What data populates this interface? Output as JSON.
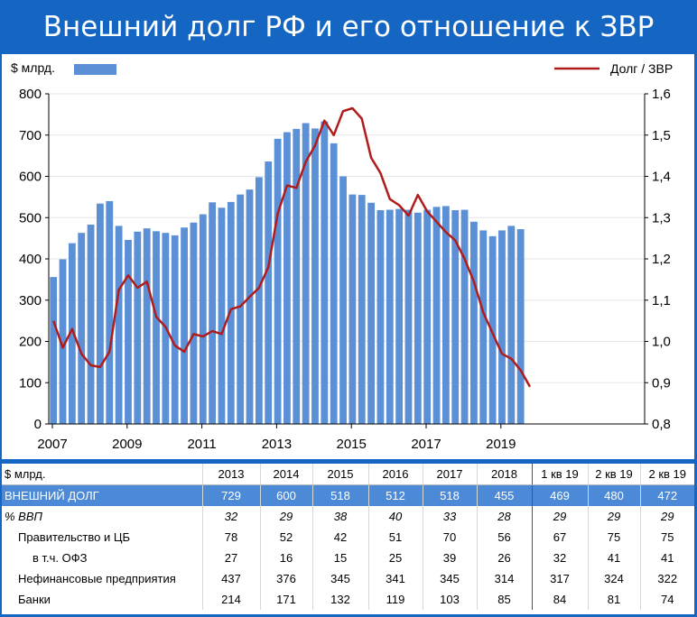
{
  "title": "Внешний долг РФ и его отношение к ЗВР",
  "chart_data": {
    "type": "bar+line",
    "left_unit": "$ млрд.",
    "right_series_name": "Долг / ЗВР",
    "left_ylim": [
      0,
      800
    ],
    "left_yticks": [
      "0",
      "100",
      "200",
      "300",
      "400",
      "500",
      "600",
      "700",
      "800"
    ],
    "right_ylim": [
      0.8,
      1.6
    ],
    "right_yticks": [
      "0,8",
      "0,9",
      "1,0",
      "1,1",
      "1,2",
      "1,3",
      "1,4",
      "1,5",
      "1,6"
    ],
    "xticks": [
      "2007",
      "2009",
      "2011",
      "2013",
      "2015",
      "2017",
      "2019"
    ],
    "x_start": 2007.0,
    "bar_color": "#5b8fd6",
    "line_color": "#b01c1c",
    "bars": [
      {
        "x": 2007.0,
        "y": 356
      },
      {
        "x": 2007.25,
        "y": 399
      },
      {
        "x": 2007.5,
        "y": 438
      },
      {
        "x": 2007.75,
        "y": 463
      },
      {
        "x": 2008.0,
        "y": 483
      },
      {
        "x": 2008.25,
        "y": 534
      },
      {
        "x": 2008.5,
        "y": 540
      },
      {
        "x": 2008.75,
        "y": 480
      },
      {
        "x": 2009.0,
        "y": 446
      },
      {
        "x": 2009.25,
        "y": 466
      },
      {
        "x": 2009.5,
        "y": 474
      },
      {
        "x": 2009.75,
        "y": 467
      },
      {
        "x": 2010.0,
        "y": 463
      },
      {
        "x": 2010.25,
        "y": 457
      },
      {
        "x": 2010.5,
        "y": 476
      },
      {
        "x": 2010.75,
        "y": 488
      },
      {
        "x": 2011.0,
        "y": 508
      },
      {
        "x": 2011.25,
        "y": 537
      },
      {
        "x": 2011.5,
        "y": 524
      },
      {
        "x": 2011.75,
        "y": 538
      },
      {
        "x": 2012.0,
        "y": 556
      },
      {
        "x": 2012.25,
        "y": 568
      },
      {
        "x": 2012.5,
        "y": 598
      },
      {
        "x": 2012.75,
        "y": 636
      },
      {
        "x": 2013.0,
        "y": 691
      },
      {
        "x": 2013.25,
        "y": 707
      },
      {
        "x": 2013.5,
        "y": 715
      },
      {
        "x": 2013.75,
        "y": 729
      },
      {
        "x": 2014.0,
        "y": 716
      },
      {
        "x": 2014.25,
        "y": 733
      },
      {
        "x": 2014.5,
        "y": 680
      },
      {
        "x": 2014.75,
        "y": 600
      },
      {
        "x": 2015.0,
        "y": 556
      },
      {
        "x": 2015.25,
        "y": 555
      },
      {
        "x": 2015.5,
        "y": 536
      },
      {
        "x": 2015.75,
        "y": 518
      },
      {
        "x": 2016.0,
        "y": 519
      },
      {
        "x": 2016.25,
        "y": 521
      },
      {
        "x": 2016.5,
        "y": 519
      },
      {
        "x": 2016.75,
        "y": 512
      },
      {
        "x": 2017.0,
        "y": 519
      },
      {
        "x": 2017.25,
        "y": 526
      },
      {
        "x": 2017.5,
        "y": 528
      },
      {
        "x": 2017.75,
        "y": 518
      },
      {
        "x": 2018.0,
        "y": 519
      },
      {
        "x": 2018.25,
        "y": 490
      },
      {
        "x": 2018.5,
        "y": 469
      },
      {
        "x": 2018.75,
        "y": 455
      },
      {
        "x": 2019.0,
        "y": 469
      },
      {
        "x": 2019.25,
        "y": 480
      },
      {
        "x": 2019.5,
        "y": 472
      }
    ],
    "ratio": [
      {
        "x": 2007.0,
        "y": 1.05
      },
      {
        "x": 2007.25,
        "y": 0.985
      },
      {
        "x": 2007.5,
        "y": 1.03
      },
      {
        "x": 2007.75,
        "y": 0.97
      },
      {
        "x": 2008.0,
        "y": 0.942
      },
      {
        "x": 2008.25,
        "y": 0.938
      },
      {
        "x": 2008.5,
        "y": 0.975
      },
      {
        "x": 2008.75,
        "y": 1.125
      },
      {
        "x": 2009.0,
        "y": 1.16
      },
      {
        "x": 2009.25,
        "y": 1.13
      },
      {
        "x": 2009.5,
        "y": 1.145
      },
      {
        "x": 2009.75,
        "y": 1.06
      },
      {
        "x": 2010.0,
        "y": 1.035
      },
      {
        "x": 2010.25,
        "y": 0.99
      },
      {
        "x": 2010.5,
        "y": 0.975
      },
      {
        "x": 2010.75,
        "y": 1.018
      },
      {
        "x": 2011.0,
        "y": 1.012
      },
      {
        "x": 2011.25,
        "y": 1.025
      },
      {
        "x": 2011.5,
        "y": 1.018
      },
      {
        "x": 2011.75,
        "y": 1.078
      },
      {
        "x": 2012.0,
        "y": 1.085
      },
      {
        "x": 2012.25,
        "y": 1.108
      },
      {
        "x": 2012.5,
        "y": 1.13
      },
      {
        "x": 2012.75,
        "y": 1.18
      },
      {
        "x": 2013.0,
        "y": 1.31
      },
      {
        "x": 2013.25,
        "y": 1.378
      },
      {
        "x": 2013.5,
        "y": 1.372
      },
      {
        "x": 2013.75,
        "y": 1.435
      },
      {
        "x": 2014.0,
        "y": 1.475
      },
      {
        "x": 2014.25,
        "y": 1.535
      },
      {
        "x": 2014.5,
        "y": 1.5
      },
      {
        "x": 2014.75,
        "y": 1.558
      },
      {
        "x": 2015.0,
        "y": 1.565
      },
      {
        "x": 2015.25,
        "y": 1.54
      },
      {
        "x": 2015.5,
        "y": 1.445
      },
      {
        "x": 2015.75,
        "y": 1.408
      },
      {
        "x": 2016.0,
        "y": 1.345
      },
      {
        "x": 2016.25,
        "y": 1.33
      },
      {
        "x": 2016.5,
        "y": 1.305
      },
      {
        "x": 2016.75,
        "y": 1.355
      },
      {
        "x": 2017.0,
        "y": 1.315
      },
      {
        "x": 2017.25,
        "y": 1.29
      },
      {
        "x": 2017.5,
        "y": 1.265
      },
      {
        "x": 2017.75,
        "y": 1.245
      },
      {
        "x": 2018.0,
        "y": 1.2
      },
      {
        "x": 2018.25,
        "y": 1.145
      },
      {
        "x": 2018.5,
        "y": 1.07
      },
      {
        "x": 2018.75,
        "y": 1.02
      },
      {
        "x": 2019.0,
        "y": 0.97
      },
      {
        "x": 2019.25,
        "y": 0.958
      },
      {
        "x": 2019.5,
        "y": 0.93
      },
      {
        "x": 2019.75,
        "y": 0.89
      }
    ]
  },
  "table": {
    "header": [
      "$ млрд.",
      "2013",
      "2014",
      "2015",
      "2016",
      "2017",
      "2018",
      "1 кв 19",
      "2 кв 19",
      "2 кв 19"
    ],
    "rows": [
      {
        "label": "ВНЕШНИЙ ДОЛГ",
        "values": [
          "729",
          "600",
          "518",
          "512",
          "518",
          "455",
          "469",
          "480",
          "472"
        ]
      },
      {
        "label": "% ВВП",
        "values": [
          "32",
          "29",
          "38",
          "40",
          "33",
          "28",
          "29",
          "29",
          "29"
        ]
      },
      {
        "label": "Правительство и ЦБ",
        "values": [
          "78",
          "52",
          "42",
          "51",
          "70",
          "56",
          "67",
          "75",
          "75"
        ]
      },
      {
        "label": "в т.ч. ОФЗ",
        "values": [
          "27",
          "16",
          "15",
          "25",
          "39",
          "26",
          "32",
          "41",
          "41"
        ]
      },
      {
        "label": "Нефинансовые предприятия",
        "values": [
          "437",
          "376",
          "345",
          "341",
          "345",
          "314",
          "317",
          "324",
          "322"
        ]
      },
      {
        "label": "Банки",
        "values": [
          "214",
          "171",
          "132",
          "119",
          "103",
          "85",
          "84",
          "81",
          "74"
        ]
      }
    ]
  }
}
